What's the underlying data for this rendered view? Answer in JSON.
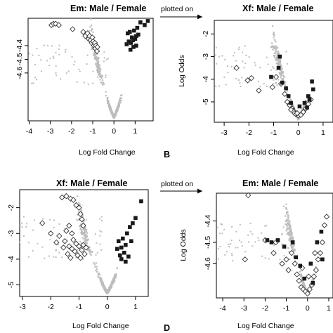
{
  "figure": {
    "arrow_text": "plotted on",
    "panel_letters": [
      "B",
      "D"
    ]
  },
  "colors": {
    "background_points": "#bdbdbd",
    "black_marker": "#1a1a1a",
    "axis": "#000000"
  },
  "chart_data": [
    {
      "id": "A",
      "type": "scatter",
      "title": "Em: Male / Female",
      "xlabel": "Log Fold Change",
      "ylabel": "",
      "xlim": [
        -4.05,
        1.85
      ],
      "ylim": [
        -4.95,
        -4.2
      ],
      "xticks": [
        -4,
        -3,
        -2,
        -1,
        0,
        1
      ],
      "yticks": [
        -4.6,
        -4.5,
        -4.4
      ],
      "ytick_labels": [
        "-4.6",
        "-4.5",
        "-4.4"
      ],
      "series": [
        {
          "marker": "diamond-open",
          "points": [
            [
              -2.95,
              -4.25
            ],
            [
              -2.85,
              -4.24
            ],
            [
              -2.75,
              -4.24
            ],
            [
              -2.6,
              -4.25
            ],
            [
              -1.95,
              -4.28
            ],
            [
              -1.45,
              -4.3
            ],
            [
              -1.35,
              -4.33
            ],
            [
              -1.25,
              -4.31
            ],
            [
              -1.2,
              -4.35
            ],
            [
              -1.15,
              -4.33
            ],
            [
              -1.1,
              -4.36
            ],
            [
              -1.05,
              -4.38
            ],
            [
              -1.02,
              -4.34
            ],
            [
              -0.98,
              -4.37
            ],
            [
              -0.95,
              -4.4
            ],
            [
              -0.9,
              -4.38
            ],
            [
              -0.88,
              -4.42
            ],
            [
              -0.85,
              -4.4
            ],
            [
              -0.8,
              -4.44
            ],
            [
              -0.78,
              -4.41
            ]
          ]
        },
        {
          "marker": "square-filled",
          "points": [
            [
              0.65,
              -4.31
            ],
            [
              0.75,
              -4.3
            ],
            [
              0.85,
              -4.34
            ],
            [
              0.95,
              -4.29
            ],
            [
              1.05,
              -4.33
            ],
            [
              1.1,
              -4.27
            ],
            [
              1.25,
              -4.23
            ],
            [
              1.45,
              -4.25
            ],
            [
              1.6,
              -4.22
            ],
            [
              0.7,
              -4.37
            ],
            [
              0.8,
              -4.38
            ],
            [
              0.9,
              -4.36
            ],
            [
              1.0,
              -4.35
            ],
            [
              1.15,
              -4.32
            ],
            [
              1.05,
              -4.4
            ],
            [
              0.92,
              -4.41
            ],
            [
              0.78,
              -4.43
            ],
            [
              0.6,
              -4.39
            ]
          ]
        }
      ]
    },
    {
      "id": "B",
      "type": "scatter",
      "title": "Xf: Male / Female",
      "xlabel": "Log Fold Change",
      "ylabel": "Log Odds",
      "xlim": [
        -3.4,
        1.4
      ],
      "ylim": [
        -5.9,
        -1.4
      ],
      "xticks": [
        -3,
        -2,
        -1,
        0,
        1
      ],
      "yticks": [
        -5,
        -4,
        -3,
        -2
      ],
      "ytick_labels": [
        "-5",
        "-4",
        "-3",
        "-2"
      ],
      "series": [
        {
          "marker": "diamond-open",
          "points": [
            [
              -2.5,
              -3.5
            ],
            [
              -2.05,
              -4.05
            ],
            [
              -1.9,
              -3.95
            ],
            [
              -1.6,
              -4.5
            ],
            [
              -1.05,
              -4.35
            ],
            [
              -0.9,
              -3.9
            ],
            [
              -0.7,
              -4.2
            ],
            [
              -0.55,
              -4.65
            ],
            [
              -0.45,
              -5.0
            ],
            [
              -0.35,
              -5.15
            ],
            [
              -0.25,
              -5.3
            ],
            [
              -0.2,
              -5.4
            ],
            [
              -0.15,
              -5.5
            ],
            [
              -0.1,
              -5.55
            ],
            [
              0.0,
              -5.6
            ],
            [
              0.1,
              -5.58
            ],
            [
              0.2,
              -5.45
            ],
            [
              0.3,
              -5.3
            ],
            [
              0.4,
              -5.1
            ],
            [
              0.5,
              -4.9
            ],
            [
              -0.3,
              -5.35
            ],
            [
              -0.05,
              -5.5
            ]
          ]
        },
        {
          "marker": "square-filled",
          "points": [
            [
              -1.1,
              -3.9
            ],
            [
              -0.8,
              -3.5
            ],
            [
              -0.75,
              -3.0
            ],
            [
              -0.65,
              -4.15
            ],
            [
              -0.5,
              -4.4
            ],
            [
              -0.4,
              -4.75
            ],
            [
              -0.3,
              -5.05
            ],
            [
              0.05,
              -5.2
            ],
            [
              0.25,
              -5.05
            ],
            [
              0.4,
              -4.75
            ],
            [
              0.55,
              -4.1
            ],
            [
              0.45,
              -4.9
            ],
            [
              0.6,
              -4.45
            ],
            [
              0.35,
              -5.25
            ]
          ]
        }
      ]
    },
    {
      "id": "C",
      "type": "scatter",
      "title": "Xf: Male / Female",
      "xlabel": "Log Fold Change",
      "ylabel": "",
      "xlim": [
        -3.1,
        1.45
      ],
      "ylim": [
        -5.45,
        -1.3
      ],
      "xticks": [
        -3,
        -2,
        -1,
        0,
        1
      ],
      "yticks": [
        -5,
        -4,
        -3,
        -2
      ],
      "ytick_labels": [
        "-5",
        "-4",
        "-3",
        "-2"
      ],
      "series": [
        {
          "marker": "diamond-open",
          "points": [
            [
              -2.3,
              -2.6
            ],
            [
              -2.0,
              -3.0
            ],
            [
              -1.8,
              -3.35
            ],
            [
              -1.7,
              -3.1
            ],
            [
              -1.55,
              -3.55
            ],
            [
              -1.5,
              -3.3
            ],
            [
              -1.45,
              -2.9
            ],
            [
              -1.4,
              -3.8
            ],
            [
              -1.35,
              -3.5
            ],
            [
              -1.3,
              -3.95
            ],
            [
              -1.25,
              -3.6
            ],
            [
              -1.2,
              -3.25
            ],
            [
              -1.15,
              -3.7
            ],
            [
              -1.1,
              -3.4
            ],
            [
              -1.05,
              -3.85
            ],
            [
              -1.0,
              -3.5
            ],
            [
              -0.95,
              -3.95
            ],
            [
              -0.9,
              -3.65
            ],
            [
              -0.85,
              -3.45
            ],
            [
              -0.8,
              -3.8
            ],
            [
              -0.75,
              -3.55
            ],
            [
              -1.6,
              -1.6
            ],
            [
              -1.45,
              -1.55
            ],
            [
              -1.3,
              -1.65
            ],
            [
              -1.2,
              -1.7
            ],
            [
              -1.1,
              -1.9
            ],
            [
              -1.0,
              -2.0
            ],
            [
              -0.95,
              -2.25
            ],
            [
              -0.9,
              -2.45
            ],
            [
              -1.35,
              -2.7
            ],
            [
              -1.25,
              -3.0
            ],
            [
              -0.85,
              -2.7
            ]
          ]
        },
        {
          "marker": "square-filled",
          "points": [
            [
              0.35,
              -3.6
            ],
            [
              0.4,
              -3.3
            ],
            [
              0.45,
              -3.85
            ],
            [
              0.5,
              -3.55
            ],
            [
              0.55,
              -3.2
            ],
            [
              0.6,
              -3.75
            ],
            [
              0.65,
              -3.45
            ],
            [
              0.7,
              -3.0
            ],
            [
              0.8,
              -2.75
            ],
            [
              0.9,
              -2.6
            ],
            [
              0.5,
              -4.0
            ],
            [
              0.65,
              -4.1
            ],
            [
              0.75,
              -3.9
            ],
            [
              0.85,
              -3.3
            ],
            [
              1.0,
              -2.4
            ],
            [
              1.2,
              -1.75
            ]
          ]
        }
      ]
    },
    {
      "id": "D",
      "type": "scatter",
      "title": "Em: Male / Female",
      "xlabel": "Log Fold Change",
      "ylabel": "Log Odds",
      "xlim": [
        -4.3,
        1.2
      ],
      "ylim": [
        -4.76,
        -4.27
      ],
      "xticks": [
        -4,
        -3,
        -2,
        -1,
        0,
        1
      ],
      "yticks": [
        -4.6,
        -4.5,
        -4.4
      ],
      "ytick_labels": [
        "-4.6",
        "-4.5",
        "-4.4"
      ],
      "series": [
        {
          "marker": "diamond-open",
          "points": [
            [
              -2.8,
              -4.28
            ],
            [
              -2.95,
              -4.58
            ],
            [
              -2.0,
              -4.49
            ],
            [
              -1.6,
              -4.55
            ],
            [
              -1.5,
              -4.5
            ],
            [
              -1.2,
              -4.6
            ],
            [
              -1.0,
              -4.58
            ],
            [
              -0.9,
              -4.63
            ],
            [
              -0.75,
              -4.55
            ],
            [
              -0.6,
              -4.6
            ],
            [
              -0.5,
              -4.65
            ],
            [
              -0.4,
              -4.68
            ],
            [
              -0.3,
              -4.71
            ],
            [
              -0.2,
              -4.72
            ],
            [
              -0.1,
              -4.73
            ],
            [
              0.0,
              -4.74
            ],
            [
              0.1,
              -4.72
            ],
            [
              0.2,
              -4.7
            ],
            [
              0.3,
              -4.66
            ],
            [
              0.4,
              -4.63
            ],
            [
              0.5,
              -4.58
            ],
            [
              0.6,
              -4.55
            ],
            [
              0.7,
              -4.5
            ],
            [
              0.8,
              -4.42
            ],
            [
              0.9,
              -4.38
            ],
            [
              -0.25,
              -4.62
            ],
            [
              0.05,
              -4.66
            ],
            [
              0.35,
              -4.55
            ]
          ]
        },
        {
          "marker": "square-filled",
          "points": [
            [
              -1.9,
              -4.49
            ],
            [
              -1.7,
              -4.5
            ],
            [
              -1.4,
              -4.49
            ],
            [
              -1.1,
              -4.52
            ],
            [
              -0.7,
              -4.5
            ],
            [
              -0.55,
              -4.57
            ],
            [
              -0.35,
              -4.61
            ],
            [
              0.15,
              -4.6
            ],
            [
              0.45,
              -4.5
            ],
            [
              0.65,
              -4.45
            ],
            [
              0.7,
              -4.58
            ],
            [
              0.25,
              -4.69
            ],
            [
              -0.15,
              -4.67
            ]
          ]
        }
      ]
    }
  ]
}
